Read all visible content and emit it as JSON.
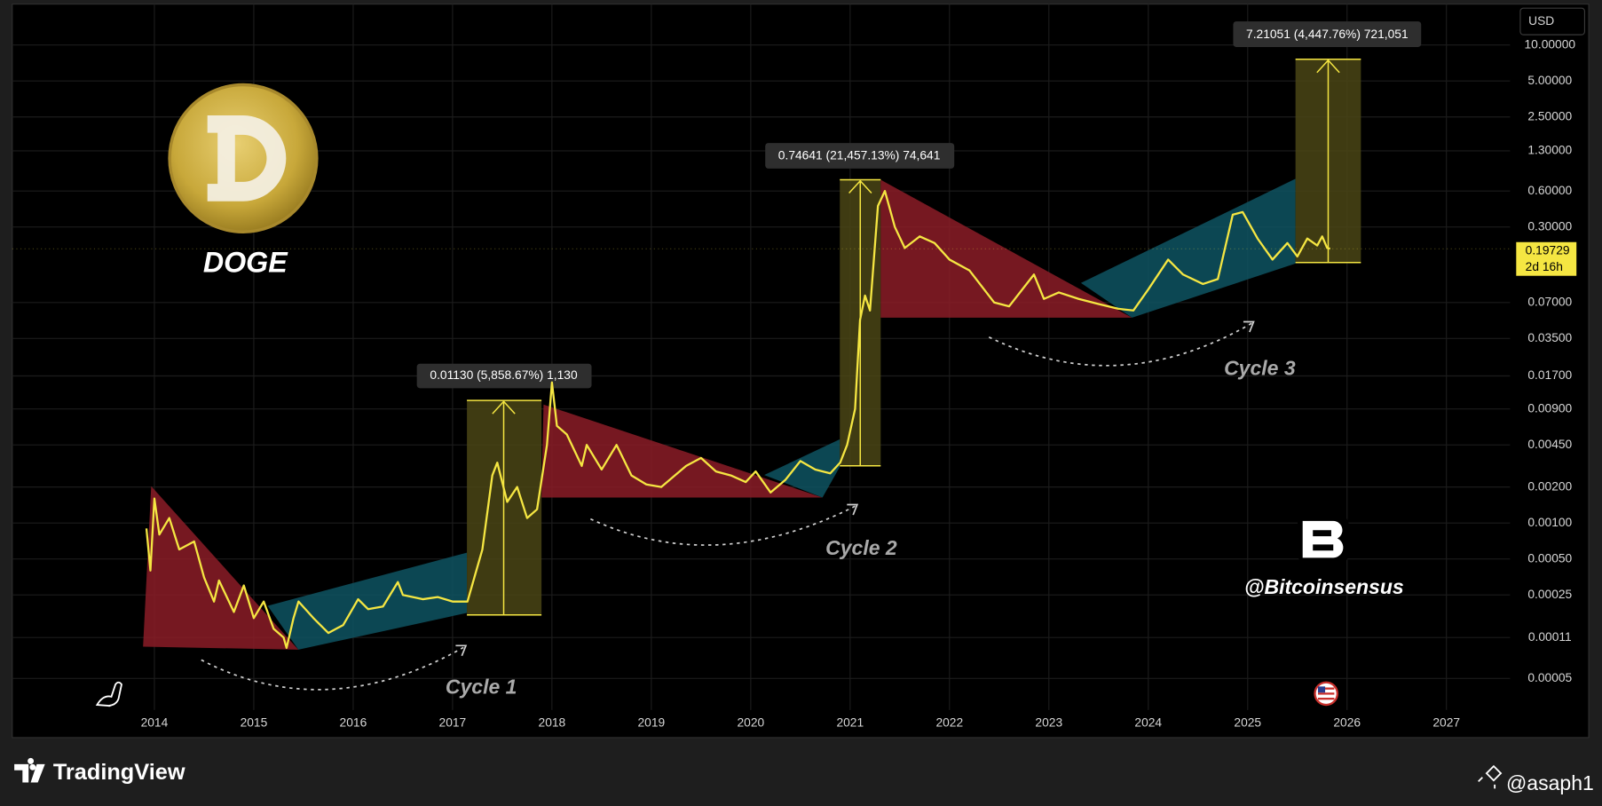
{
  "chart_data": {
    "type": "line",
    "symbol": "DOGE",
    "currency": "USD",
    "log_scale": true,
    "grid": true,
    "color": "#f5e642",
    "x": [
      2013.92,
      2013.96,
      2014.0,
      2014.05,
      2014.15,
      2014.25,
      2014.4,
      2014.5,
      2014.6,
      2014.65,
      2014.8,
      2014.9,
      2015.0,
      2015.1,
      2015.2,
      2015.3,
      2015.33,
      2015.4,
      2015.45,
      2015.6,
      2015.75,
      2015.9,
      2016.05,
      2016.15,
      2016.3,
      2016.45,
      2016.5,
      2016.7,
      2016.85,
      2017.0,
      2017.15,
      2017.3,
      2017.4,
      2017.45,
      2017.55,
      2017.65,
      2017.75,
      2017.85,
      2017.95,
      2018.0,
      2018.05,
      2018.15,
      2018.3,
      2018.35,
      2018.5,
      2018.65,
      2018.8,
      2018.95,
      2019.1,
      2019.35,
      2019.5,
      2019.65,
      2019.8,
      2019.95,
      2020.05,
      2020.2,
      2020.35,
      2020.5,
      2020.65,
      2020.8,
      2020.9,
      2020.97,
      2021.05,
      2021.1,
      2021.15,
      2021.2,
      2021.28,
      2021.35,
      2021.45,
      2021.55,
      2021.7,
      2021.85,
      2022.0,
      2022.2,
      2022.45,
      2022.6,
      2022.85,
      2022.95,
      2023.1,
      2023.3,
      2023.5,
      2023.7,
      2023.85,
      2024.0,
      2024.2,
      2024.35,
      2024.55,
      2024.7,
      2024.85,
      2024.95,
      2025.1,
      2025.25,
      2025.4,
      2025.5,
      2025.6,
      2025.7,
      2025.75,
      2025.8,
      2025.83
    ],
    "values": [
      0.0009,
      0.0004,
      0.0016,
      0.0008,
      0.0011,
      0.0006,
      0.0007,
      0.00035,
      0.00022,
      0.00033,
      0.00018,
      0.0003,
      0.00016,
      0.00022,
      0.00013,
      0.00011,
      9e-05,
      0.00016,
      0.00022,
      0.00016,
      0.00012,
      0.00014,
      0.00023,
      0.00019,
      0.0002,
      0.00032,
      0.00025,
      0.00023,
      0.00024,
      0.00022,
      0.00022,
      0.0006,
      0.0025,
      0.0032,
      0.0015,
      0.002,
      0.0011,
      0.0013,
      0.0045,
      0.015,
      0.0065,
      0.0055,
      0.003,
      0.0045,
      0.0028,
      0.0045,
      0.0025,
      0.0021,
      0.002,
      0.003,
      0.0035,
      0.0027,
      0.0025,
      0.0022,
      0.0027,
      0.0018,
      0.0023,
      0.0033,
      0.0028,
      0.0026,
      0.0032,
      0.0045,
      0.009,
      0.05,
      0.08,
      0.06,
      0.45,
      0.6,
      0.3,
      0.2,
      0.25,
      0.22,
      0.16,
      0.13,
      0.07,
      0.065,
      0.12,
      0.075,
      0.085,
      0.075,
      0.068,
      0.062,
      0.06,
      0.09,
      0.16,
      0.12,
      0.1,
      0.11,
      0.38,
      0.4,
      0.24,
      0.16,
      0.22,
      0.17,
      0.24,
      0.21,
      0.25,
      0.2,
      0.19729
    ],
    "xlim": [
      2012.57,
      2027.64
    ],
    "xticks": [
      2014,
      2015,
      2016,
      2017,
      2018,
      2019,
      2020,
      2021,
      2022,
      2023,
      2024,
      2025,
      2026,
      2027
    ],
    "ylim": [
      1.6e-05,
      23.8
    ],
    "yticks": [
      {
        "value": 10,
        "label": "10.00000"
      },
      {
        "value": 5,
        "label": "5.00000"
      },
      {
        "value": 2.5,
        "label": "2.50000"
      },
      {
        "value": 1.3,
        "label": "1.30000"
      },
      {
        "value": 0.6,
        "label": "0.60000"
      },
      {
        "value": 0.3,
        "label": "0.30000"
      },
      {
        "value": 0.07,
        "label": "0.07000"
      },
      {
        "value": 0.035,
        "label": "0.03500"
      },
      {
        "value": 0.017,
        "label": "0.01700"
      },
      {
        "value": 0.009,
        "label": "0.00900"
      },
      {
        "value": 0.0045,
        "label": "0.00450"
      },
      {
        "value": 0.002,
        "label": "0.00200"
      },
      {
        "value": 0.001,
        "label": "0.00100"
      },
      {
        "value": 0.0005,
        "label": "0.00050"
      },
      {
        "value": 0.00025,
        "label": "0.00025"
      },
      {
        "value": 0.00011,
        "label": "0.00011"
      },
      {
        "value": 5e-05,
        "label": "0.00005"
      }
    ],
    "last_price": 0.19729,
    "countdown": "2d 16h",
    "measurements": [
      "0.01130 (5,858.67%) 1,130",
      "0.74641 (21,457.13%) 74,641",
      "7.21051 (4,447.76%) 721,051"
    ],
    "annotations": [
      "Cycle 1",
      "Cycle 2",
      "Cycle 3"
    ],
    "watermark": "@Bitcoinsensus",
    "brand": "TradingView",
    "user": "@asaph1"
  }
}
